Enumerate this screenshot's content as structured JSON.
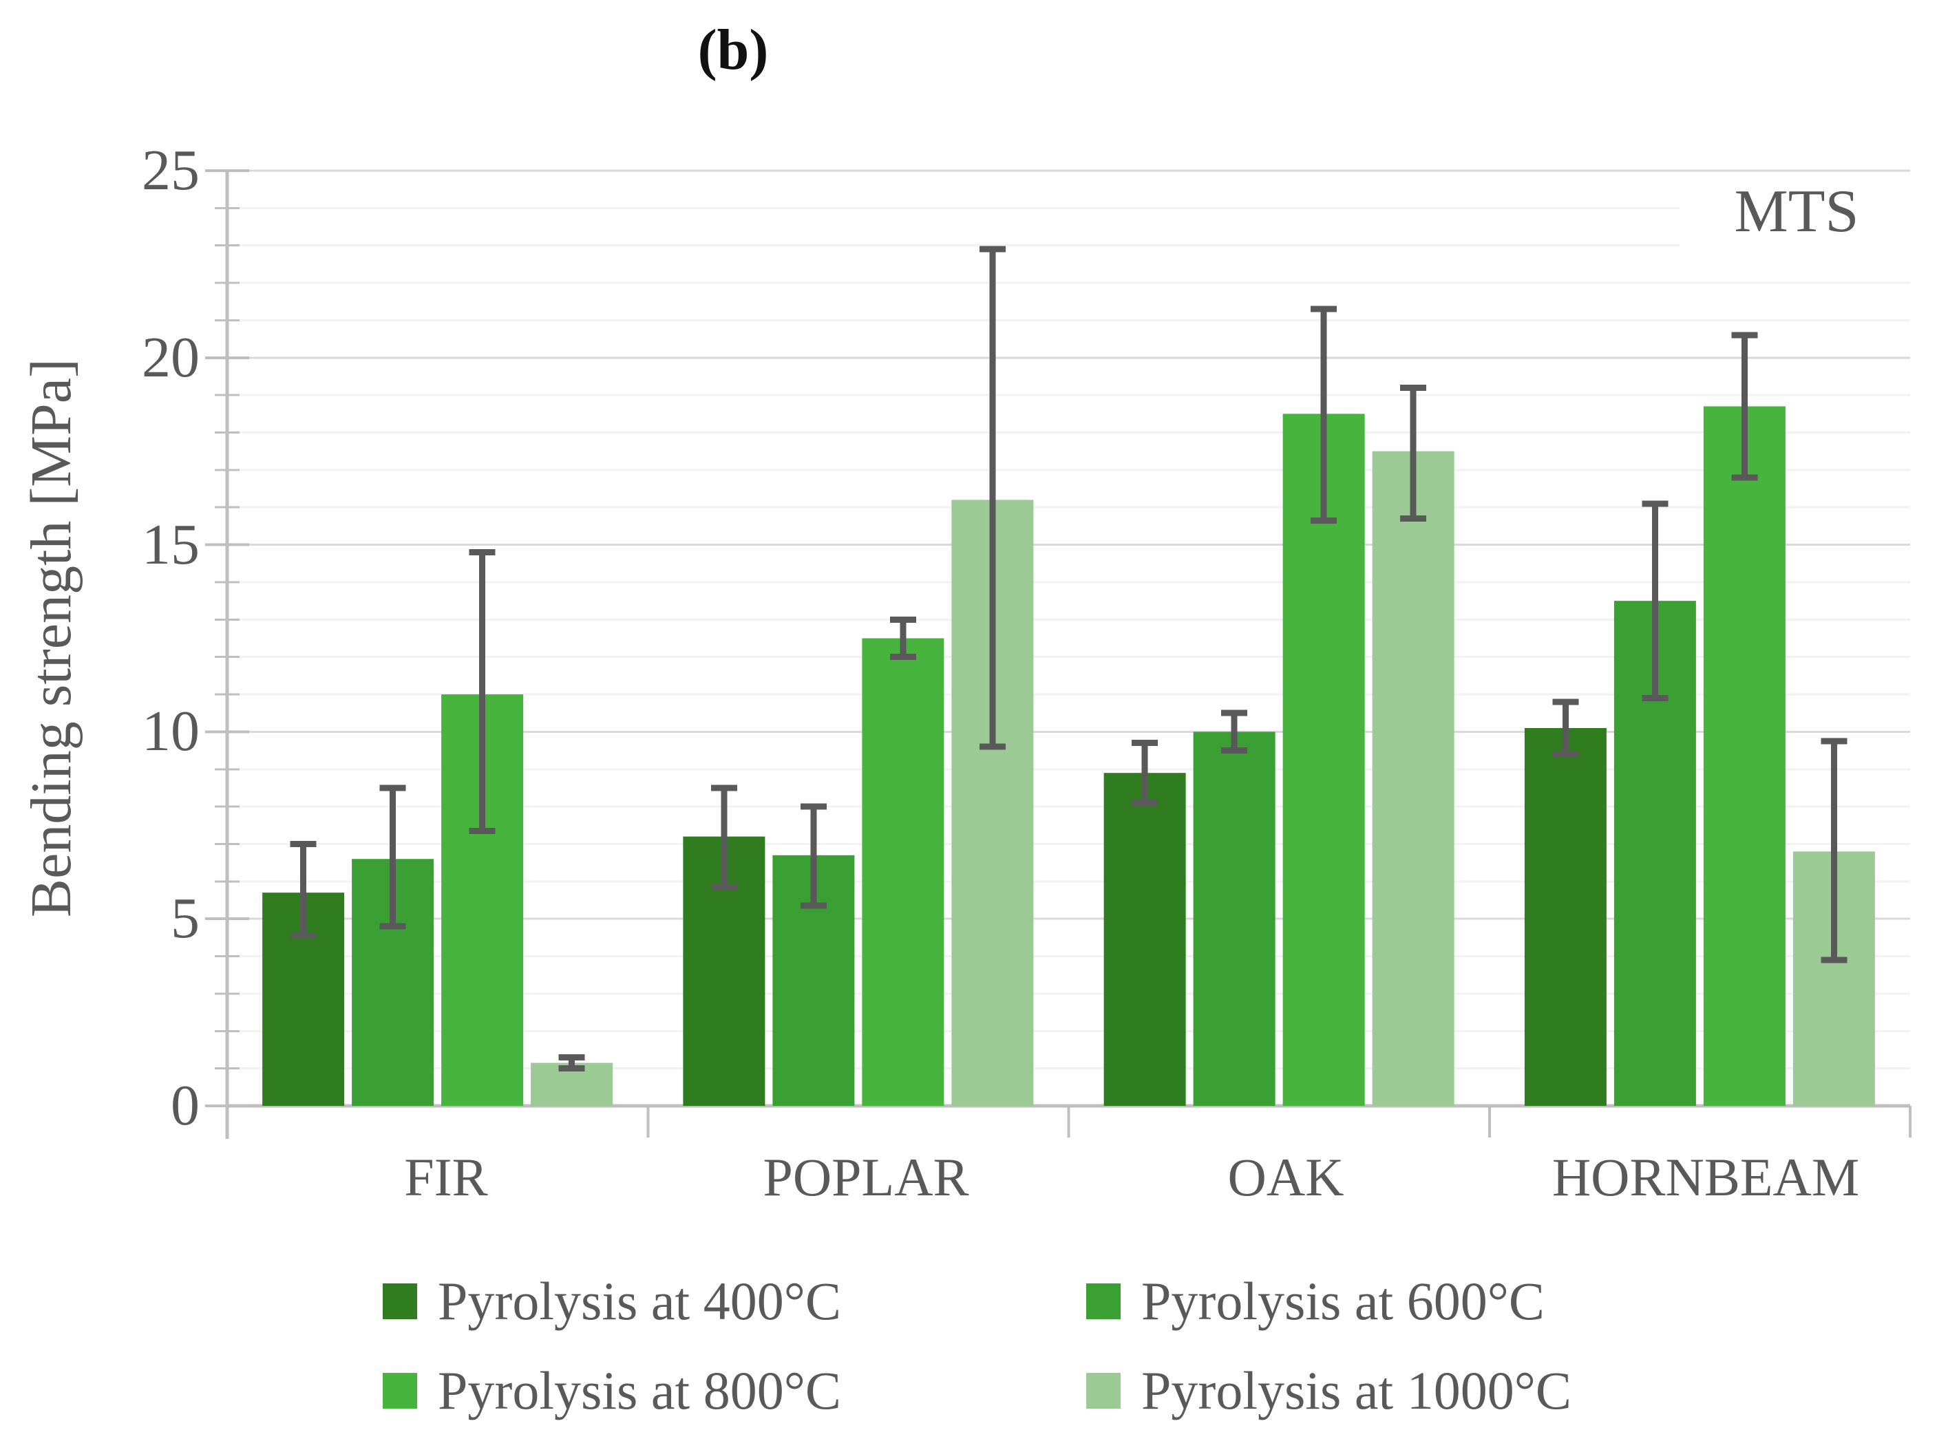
{
  "title": "(b)",
  "y_axis": {
    "label": "Bending strength [MPa]",
    "ticks": [
      "0",
      "5",
      "10",
      "15",
      "20",
      "25"
    ]
  },
  "annotation": "MTS",
  "colors": {
    "grid_minor": "#f2f2f2",
    "grid_major": "#d9d9d9",
    "axis": "#bfbfbf",
    "error_bar": "#595959",
    "text": "#595959"
  },
  "chart_data": {
    "type": "bar",
    "title": "(b)",
    "annotation": "MTS",
    "ylabel": "Bending strength [MPa]",
    "xlabel": "",
    "ylim": [
      0,
      25
    ],
    "ytick_step_major": 5,
    "ytick_step_minor": 1,
    "grid": "horizontal minor every 1 MPa, major every 5 MPa",
    "legend_position": "bottom",
    "categories": [
      "FIR",
      "POPLAR",
      "OAK",
      "HORNBEAM"
    ],
    "series": [
      {
        "name": "Pyrolysis at 400°C",
        "color": "#2f7d1f",
        "values": [
          5.7,
          7.2,
          8.9,
          10.1
        ],
        "error_high": [
          7.0,
          8.5,
          9.7,
          10.8
        ],
        "error_low": [
          4.55,
          5.85,
          8.1,
          9.4
        ]
      },
      {
        "name": "Pyrolysis at 600°C",
        "color": "#3ba033",
        "values": [
          6.6,
          6.7,
          10.0,
          13.5
        ],
        "error_high": [
          8.5,
          8.0,
          10.5,
          16.1
        ],
        "error_low": [
          4.8,
          5.35,
          9.5,
          10.9
        ]
      },
      {
        "name": "Pyrolysis at 800°C",
        "color": "#47b43e",
        "values": [
          11.0,
          12.5,
          18.5,
          18.7
        ],
        "error_high": [
          14.8,
          13.0,
          21.3,
          20.6
        ],
        "error_low": [
          7.35,
          12.0,
          15.65,
          16.8
        ]
      },
      {
        "name": "Pyrolysis at 1000°C",
        "color": "#9bca94",
        "values": [
          1.15,
          16.2,
          17.5,
          6.8
        ],
        "error_high": [
          1.3,
          22.9,
          19.2,
          9.75
        ],
        "error_low": [
          1.0,
          9.6,
          15.7,
          3.9
        ]
      }
    ]
  }
}
